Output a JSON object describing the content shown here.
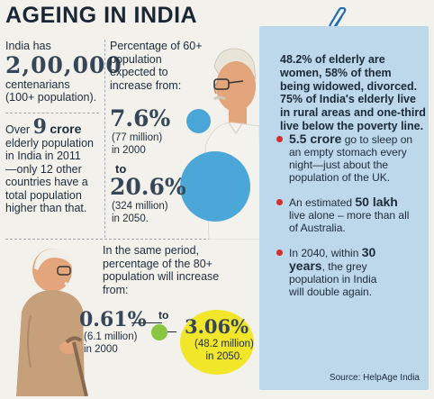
{
  "title": "AGEING IN INDIA",
  "left": {
    "cent_intro": "India has",
    "cent_number": "2,00,000",
    "cent_desc1": "centenarians",
    "cent_desc2": "(100+ population).",
    "crore_prefix": "Over",
    "crore_number": "9",
    "crore_word": "crore",
    "crore_l1": "elderly population",
    "crore_l2": "in India in 2011",
    "crore_l3": "—only 12 other",
    "crore_l4": "countries  have a",
    "crore_l5": "total population",
    "crore_l6": "higher than that."
  },
  "middle": {
    "intro1": "Percentage of 60+",
    "intro2": "population",
    "intro3": "expected to",
    "intro4": "increase from:",
    "v1": "7.6%",
    "v1_sub1": "(77 million)",
    "v1_sub2": "in 2000",
    "to": "to",
    "v2": "20.6%",
    "v2_sub1": "(324 million)",
    "v2_sub2": "in 2050."
  },
  "bottom": {
    "intro1": "In the same period,",
    "intro2": "percentage of the 80+",
    "intro3": "population will increase",
    "intro4": "from:",
    "v1": "0.61%",
    "v1_sub1": "(6.1 million)",
    "v1_sub2": "in 2000",
    "to": "to",
    "v2": "3.06%",
    "v2_sub1": "(48.2 million)",
    "v2_sub2": "in 2050."
  },
  "panel": {
    "lead_l1": "48.2% of elderly are",
    "lead_l2": "women, 58% of them",
    "lead_l3": "being widowed, divorced.",
    "lead_l4": "75% of India's elderly live",
    "lead_l5": "in rural areas and one-third",
    "lead_l6": "live below the poverty line.",
    "b1_bold": "5.5 crore",
    "b1_rest1": " go to sleep on",
    "b1_l2": "an empty stomach  every",
    "b1_l3": "night—just about the",
    "b1_l4": "population of the UK.",
    "b2_pre": "An estimated ",
    "b2_bold": "50 lakh",
    "b2_l2": "live alone – more than all",
    "b2_l3": "of Australia.",
    "b3_pre": "In 2040, within ",
    "b3_bold1": "30",
    "b3_bold2": "years",
    "b3_l2rest": ", the grey",
    "b3_l3": "population in India",
    "b3_l4": "will double again."
  },
  "source": "Source: HelpAge India",
  "colors": {
    "panel": "#bcd8ea",
    "bullet": "#d62c2c",
    "circle_blue": "#4aa7d8",
    "circle_green": "#88c541",
    "circle_yellow": "#f2e62a"
  }
}
